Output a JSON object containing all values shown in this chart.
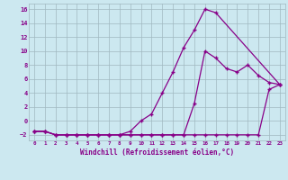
{
  "xlabel": "Windchill (Refroidissement éolien,°C)",
  "bg_color": "#cce8f0",
  "grid_color": "#a0b8c0",
  "line_color": "#880088",
  "ylim": [
    -2.8,
    16.8
  ],
  "xlim": [
    -0.5,
    23.5
  ],
  "yticks": [
    -2,
    0,
    2,
    4,
    6,
    8,
    10,
    12,
    14,
    16
  ],
  "xticks": [
    0,
    1,
    2,
    3,
    4,
    5,
    6,
    7,
    8,
    9,
    10,
    11,
    12,
    13,
    14,
    15,
    16,
    17,
    18,
    19,
    20,
    21,
    22,
    23
  ],
  "line1_x": [
    0,
    1,
    2,
    3,
    4,
    5,
    6,
    7,
    8,
    9,
    10,
    11,
    12,
    13,
    14,
    15,
    16,
    17,
    23
  ],
  "line1_y": [
    -1.5,
    -1.5,
    -2,
    -2,
    -2,
    -2,
    -2,
    -2,
    -2,
    -1.5,
    0,
    1,
    4,
    7,
    10.5,
    13,
    16,
    15.5,
    5.2
  ],
  "line2_x": [
    0,
    1,
    2,
    3,
    4,
    5,
    6,
    7,
    8,
    9,
    10,
    11,
    12,
    13,
    14,
    15,
    16,
    17,
    18,
    19,
    20,
    21,
    22,
    23
  ],
  "line2_y": [
    -1.5,
    -1.5,
    -2,
    -2,
    -2,
    -2,
    -2,
    -2,
    -2,
    -2,
    -2,
    -2,
    -2,
    -2,
    -2,
    2.5,
    10,
    9.0,
    7.5,
    7.0,
    8.0,
    6.5,
    5.5,
    5.2
  ],
  "line3_x": [
    0,
    1,
    2,
    3,
    4,
    5,
    6,
    7,
    8,
    9,
    10,
    11,
    12,
    13,
    14,
    15,
    16,
    17,
    18,
    19,
    20,
    21,
    22,
    23
  ],
  "line3_y": [
    -1.5,
    -1.5,
    -2,
    -2,
    -2,
    -2,
    -2,
    -2,
    -2,
    -2,
    -2,
    -2,
    -2,
    -2,
    -2,
    -2,
    -2,
    -2,
    -2,
    -2,
    -2,
    -2,
    4.5,
    5.2
  ]
}
